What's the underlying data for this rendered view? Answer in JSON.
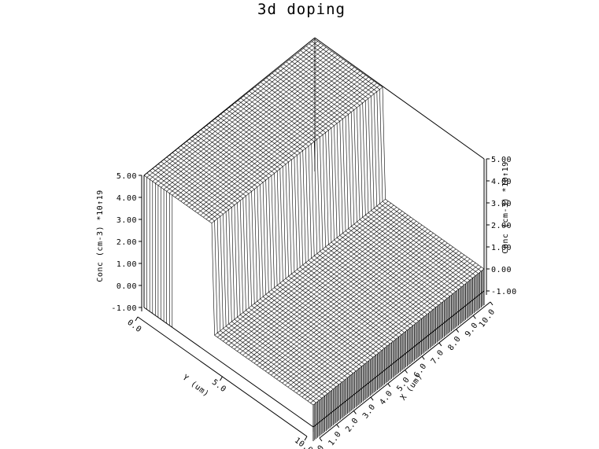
{
  "chart_data": {
    "type": "surface3d",
    "title": "3d doping",
    "zlabel": "Conc (cm-3) *10↑19",
    "xlabel": "X (um)",
    "ylabel": "Y (um)",
    "zlim": [
      -1.0,
      5.0
    ],
    "xlim": [
      0.0,
      10.0
    ],
    "ylim": [
      0.0,
      10.0
    ],
    "z_ticks": [
      "5.00",
      "4.00",
      "3.00",
      "2.00",
      "1.00",
      "0.00",
      "-1.00"
    ],
    "x_ticks": [
      "0.0",
      "1.0",
      "2.0",
      "3.0",
      "4.0",
      "5.0",
      "6.0",
      "7.0",
      "8.0",
      "9.0",
      "10.0"
    ],
    "y_ticks": [
      "0.0",
      "5.0",
      "10.0"
    ],
    "surface": {
      "background_level": 0.0,
      "peak_level": 5.0,
      "ridge_x_range": [
        0.0,
        10.0
      ],
      "ridge_y_range": [
        0.0,
        4.0
      ]
    },
    "grid": false,
    "legend": "none"
  }
}
